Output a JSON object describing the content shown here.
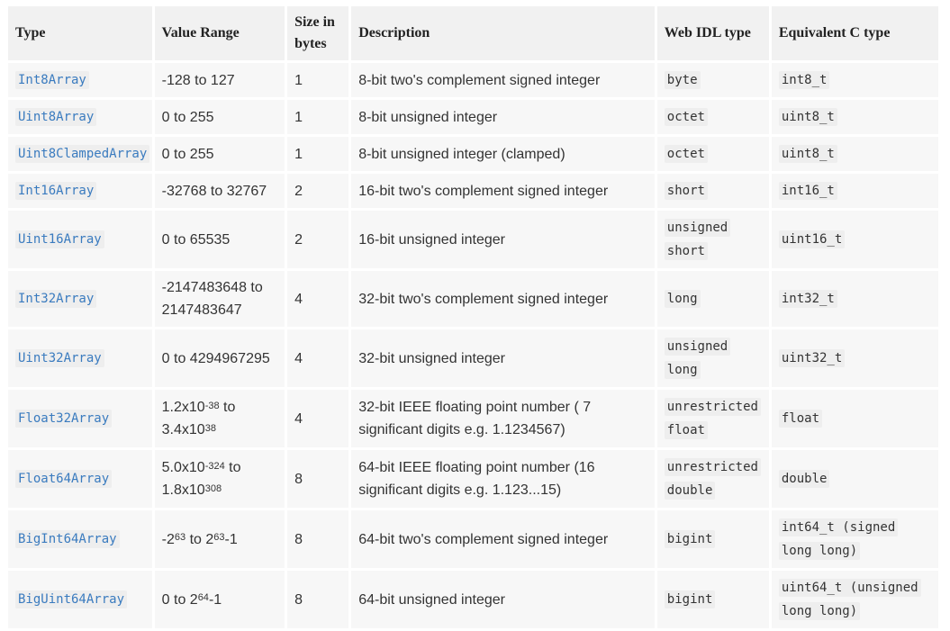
{
  "headers": {
    "type": "Type",
    "range": "Value Range",
    "size": "Size in bytes",
    "desc": "Description",
    "idl": "Web IDL type",
    "ctype": "Equivalent C type"
  },
  "rows": [
    {
      "type": "Int8Array",
      "range": "-128 to 127",
      "size": "1",
      "desc": "8-bit two's complement signed integer",
      "idl": [
        "byte"
      ],
      "ctype": [
        "int8_t"
      ]
    },
    {
      "type": "Uint8Array",
      "range": "0 to 255",
      "size": "1",
      "desc": "8-bit unsigned integer",
      "idl": [
        "octet"
      ],
      "ctype": [
        "uint8_t"
      ]
    },
    {
      "type": "Uint8ClampedArray",
      "range": "0 to 255",
      "size": "1",
      "desc": "8-bit unsigned integer (clamped)",
      "idl": [
        "octet"
      ],
      "ctype": [
        "uint8_t"
      ]
    },
    {
      "type": "Int16Array",
      "range": "-32768 to 32767",
      "size": "2",
      "desc": "16-bit two's complement signed integer",
      "idl": [
        "short"
      ],
      "ctype": [
        "int16_t"
      ]
    },
    {
      "type": "Uint16Array",
      "range": "0 to 65535",
      "size": "2",
      "desc": "16-bit unsigned integer",
      "idl": [
        "unsigned",
        "short"
      ],
      "ctype": [
        "uint16_t"
      ]
    },
    {
      "type": "Int32Array",
      "range_lines": [
        "-2147483648 to",
        "2147483647"
      ],
      "size": "4",
      "desc": "32-bit two's complement signed integer",
      "idl": [
        "long"
      ],
      "ctype": [
        "int32_t"
      ]
    },
    {
      "type": "Uint32Array",
      "range": "0 to 4294967295",
      "size": "4",
      "desc": "32-bit unsigned integer",
      "idl": [
        "unsigned",
        "long"
      ],
      "ctype": [
        "uint32_t"
      ]
    },
    {
      "type": "Float32Array",
      "range_parts": {
        "a_base": "1.2x10",
        "a_exp": "-38",
        "mid": " to",
        "b_base": "3.4x10",
        "b_exp": "38"
      },
      "size": "4",
      "desc_lines": [
        "32-bit IEEE floating point number ( 7",
        "significant digits e.g. 1.1234567)"
      ],
      "idl": [
        "unrestricted",
        "float"
      ],
      "ctype": [
        "float"
      ]
    },
    {
      "type": "Float64Array",
      "range_parts": {
        "a_base": "5.0x10",
        "a_exp": "-324",
        "mid": " to",
        "b_base": "1.8x10",
        "b_exp": "308"
      },
      "size": "8",
      "desc_lines": [
        "64-bit IEEE floating point number (16",
        "significant digits e.g. 1.123...15)"
      ],
      "idl": [
        "unrestricted",
        "double"
      ],
      "ctype": [
        "double"
      ]
    },
    {
      "type": "BigInt64Array",
      "range_big": {
        "a_base": "-2",
        "a_exp": "63",
        "mid": " to 2",
        "b_exp": "63",
        "tail": "-1"
      },
      "size": "8",
      "desc": "64-bit two's complement signed integer",
      "idl": [
        "bigint"
      ],
      "ctype": [
        "int64_t (signed",
        "long long)"
      ]
    },
    {
      "type": "BigUint64Array",
      "range_big": {
        "a_base": "0 to 2",
        "a_exp": "64",
        "tail": "-1"
      },
      "size": "8",
      "desc": "64-bit unsigned integer",
      "idl": [
        "bigint"
      ],
      "ctype": [
        "uint64_t (unsigned",
        "long long)"
      ]
    }
  ]
}
